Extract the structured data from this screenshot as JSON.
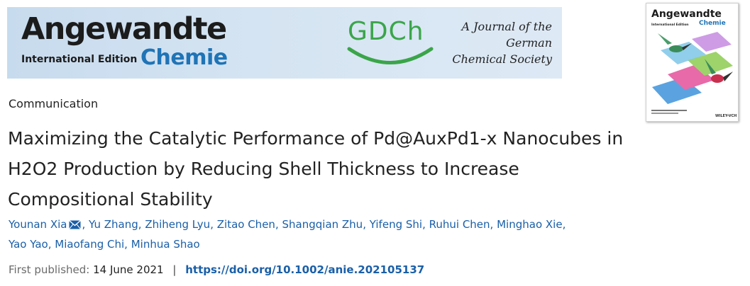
{
  "banner": {
    "journal_name_top": "Angewandte",
    "journal_edition": "International Edition",
    "journal_name_bottom": "Chemie",
    "society_logo_text": "GDCh",
    "society_tagline": [
      "A Journal of the",
      "German",
      "Chemical Society"
    ]
  },
  "cover": {
    "title_top": "Angewandte",
    "title_bottom": "Chemie",
    "edition": "International Edition",
    "publisher": "WILEY-VCH"
  },
  "article": {
    "type_label": "Communication",
    "title": "Maximizing the Catalytic Performance of Pd@AuxPd1-x Nanocubes in H2O2 Production by Reducing Shell Thickness to Increase Compositional Stability",
    "authors": [
      "Younan Xia",
      "Yu Zhang",
      "Zhiheng Lyu",
      "Zitao Chen",
      "Shangqian Zhu",
      "Yifeng Shi",
      "Ruhui Chen",
      "Minghao Xie",
      "Yao Yao",
      "Miaofang Chi",
      "Minhua Shao"
    ],
    "separator": ",",
    "published_label": "First published:",
    "published_date": "14 June 2021",
    "divider": "|",
    "doi": "https://doi.org/10.1002/anie.202105137"
  },
  "colors": {
    "link": "#1a5fa8",
    "chemie_blue": "#1f74b6",
    "gdch_green": "#3aa549"
  },
  "icons": {
    "corresponding_author": "envelope-icon"
  }
}
